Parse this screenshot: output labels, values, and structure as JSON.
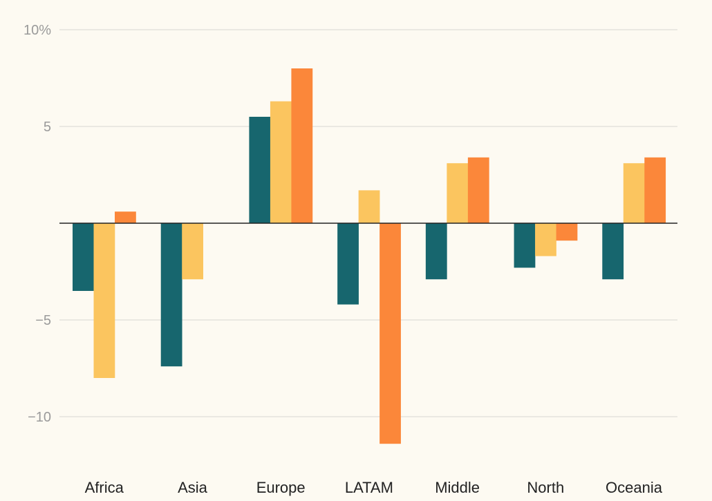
{
  "chart_data": {
    "type": "bar",
    "title": "",
    "xlabel": "",
    "ylabel": "",
    "categories": [
      "Africa",
      "Asia",
      "Europe",
      "LATAM",
      "Middle",
      "North",
      "Oceania"
    ],
    "series": [
      {
        "color": "#17666e",
        "values": [
          -3.5,
          -7.4,
          5.5,
          -4.2,
          -2.9,
          -2.3,
          -2.9
        ]
      },
      {
        "color": "#fbc55f",
        "values": [
          -8.0,
          -2.9,
          6.3,
          1.7,
          3.1,
          -1.7,
          3.1
        ]
      },
      {
        "color": "#fb873a",
        "values": [
          0.6,
          null,
          8.0,
          -11.4,
          3.4,
          -0.9,
          3.4
        ]
      }
    ],
    "ylim": [
      -11.5,
      10
    ],
    "yticks": [
      {
        "value": 10,
        "label": "10%"
      },
      {
        "value": 5,
        "label": "5"
      },
      {
        "value": -5,
        "label": "−5"
      },
      {
        "value": -10,
        "label": "−10"
      }
    ],
    "grid": true,
    "legend": "none"
  }
}
